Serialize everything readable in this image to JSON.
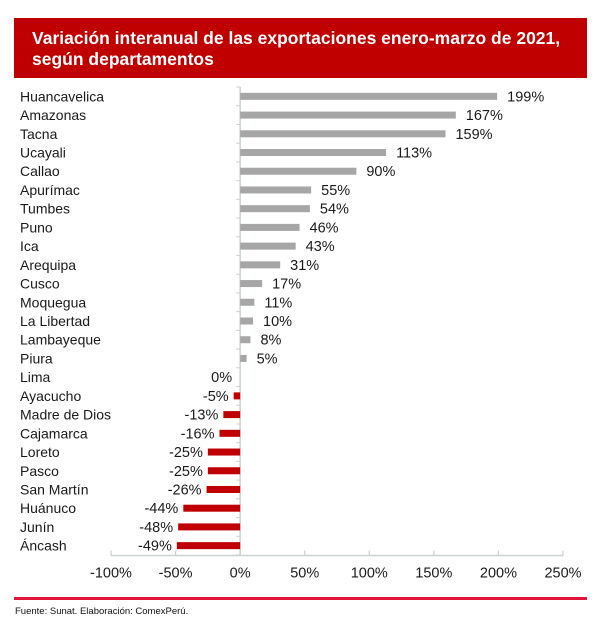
{
  "title": {
    "line1": "Variación interanual de las exportaciones enero-marzo de 2021,",
    "line2": "según departamentos"
  },
  "colors": {
    "title_bg": "#c00000",
    "positive_bar": "#a6a6a6",
    "negative_bar": "#c00000",
    "axis": "#c9d3d1",
    "footer_rule": "#e0163a"
  },
  "footer": {
    "source": "Fuente: Sunat. Elaboración: ComexPerú."
  },
  "chart_data": {
    "type": "bar",
    "orientation": "horizontal",
    "title": "Variación interanual de las exportaciones enero-marzo de 2021, según departamentos",
    "xlabel": "",
    "ylabel": "",
    "xlim": [
      -100,
      250
    ],
    "grid": false,
    "x_ticks": [
      -100,
      -50,
      0,
      50,
      100,
      150,
      200,
      250
    ],
    "x_tick_labels": [
      "-100%",
      "-50%",
      "0%",
      "50%",
      "100%",
      "150%",
      "200%",
      "250%"
    ],
    "categories": [
      "Huancavelica",
      "Amazonas",
      "Tacna",
      "Ucayali",
      "Callao",
      "Apurímac",
      "Tumbes",
      "Puno",
      "Ica",
      "Arequipa",
      "Cusco",
      "Moquegua",
      "La Libertad",
      "Lambayeque",
      "Piura",
      "Lima",
      "Ayacucho",
      "Madre de Dios",
      "Cajamarca",
      "Loreto",
      "Pasco",
      "San Martín",
      "Huánuco",
      "Junín",
      "Áncash"
    ],
    "values": [
      199,
      167,
      159,
      113,
      90,
      55,
      54,
      46,
      43,
      31,
      17,
      11,
      10,
      8,
      5,
      0,
      -5,
      -13,
      -16,
      -25,
      -25,
      -26,
      -44,
      -48,
      -49
    ],
    "value_labels": [
      "199%",
      "167%",
      "159%",
      "113%",
      "90%",
      "55%",
      "54%",
      "46%",
      "43%",
      "31%",
      "17%",
      "11%",
      "10%",
      "8%",
      "5%",
      "0%",
      "-5%",
      "-13%",
      "-16%",
      "-25%",
      "-25%",
      "-26%",
      "-44%",
      "-48%",
      "-49%"
    ]
  }
}
